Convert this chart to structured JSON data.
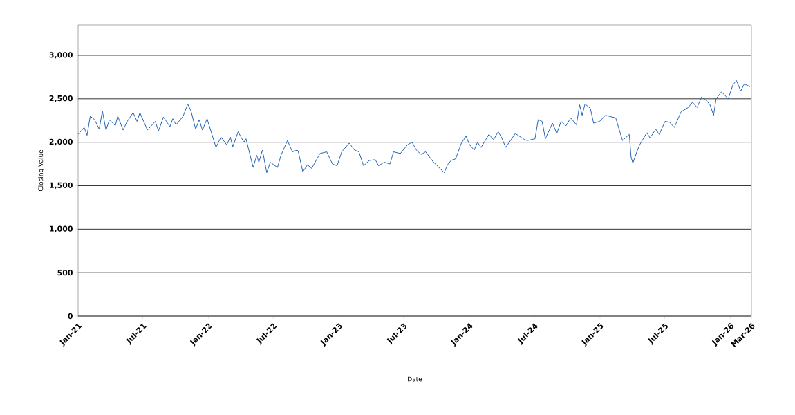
{
  "chart_data": {
    "type": "line",
    "xlabel": "Date",
    "ylabel": "Closing Value",
    "x": [
      "2021-01-01",
      "2021-01-18",
      "2021-01-26",
      "2021-02-04",
      "2021-02-16",
      "2021-03-01",
      "2021-03-10",
      "2021-03-20",
      "2021-03-30",
      "2021-04-15",
      "2021-04-22",
      "2021-05-07",
      "2021-05-17",
      "2021-06-04",
      "2021-06-15",
      "2021-06-23",
      "2021-07-14",
      "2021-08-05",
      "2021-08-14",
      "2021-08-28",
      "2021-09-15",
      "2021-09-23",
      "2021-10-02",
      "2021-10-22",
      "2021-11-04",
      "2021-11-13",
      "2021-11-26",
      "2021-12-06",
      "2021-12-15",
      "2021-12-28",
      "2022-01-22",
      "2022-02-05",
      "2022-02-21",
      "2022-03-03",
      "2022-03-10",
      "2022-03-25",
      "2022-04-10",
      "2022-04-16",
      "2022-05-06",
      "2022-05-16",
      "2022-05-22",
      "2022-06-01",
      "2022-06-13",
      "2022-06-23",
      "2022-07-13",
      "2022-07-23",
      "2022-08-10",
      "2022-08-24",
      "2022-09-06",
      "2022-09-09",
      "2022-09-22",
      "2022-10-05",
      "2022-10-17",
      "2022-11-09",
      "2022-11-28",
      "2022-12-14",
      "2022-12-27",
      "2023-01-09",
      "2023-01-30",
      "2023-02-14",
      "2023-02-26",
      "2023-03-11",
      "2023-03-27",
      "2023-04-13",
      "2023-04-22",
      "2023-05-08",
      "2023-05-24",
      "2023-06-03",
      "2023-06-22",
      "2023-07-12",
      "2023-07-25",
      "2023-08-06",
      "2023-08-19",
      "2023-09-01",
      "2023-09-21",
      "2023-10-03",
      "2023-10-23",
      "2023-11-01",
      "2023-11-11",
      "2023-11-24",
      "2023-12-10",
      "2023-12-23",
      "2024-01-02",
      "2024-01-15",
      "2024-01-24",
      "2024-02-03",
      "2024-02-25",
      "2024-03-09",
      "2024-03-22",
      "2024-04-01",
      "2024-04-12",
      "2024-04-27",
      "2024-05-09",
      "2024-06-04",
      "2024-06-11",
      "2024-07-03",
      "2024-07-12",
      "2024-07-23",
      "2024-08-01",
      "2024-08-21",
      "2024-09-02",
      "2024-09-14",
      "2024-09-28",
      "2024-10-11",
      "2024-10-27",
      "2024-11-05",
      "2024-11-12",
      "2024-11-20",
      "2024-12-05",
      "2024-12-14",
      "2024-12-31",
      "2025-01-16",
      "2025-02-14",
      "2025-03-05",
      "2025-03-24",
      "2025-03-29",
      "2025-04-03",
      "2025-04-15",
      "2025-04-22",
      "2025-05-12",
      "2025-05-21",
      "2025-06-06",
      "2025-06-16",
      "2025-07-02",
      "2025-07-15",
      "2025-07-28",
      "2025-08-16",
      "2025-09-05",
      "2025-09-17",
      "2025-09-30",
      "2025-10-12",
      "2025-10-26",
      "2025-11-05",
      "2025-11-15",
      "2025-11-22",
      "2025-12-07",
      "2025-12-26",
      "2026-01-08",
      "2026-01-18",
      "2026-01-30",
      "2026-02-09",
      "2026-02-25"
    ],
    "series": [
      {
        "color": "#2463b4",
        "values": [
          2090,
          2170,
          2080,
          2300,
          2260,
          2150,
          2360,
          2140,
          2260,
          2190,
          2300,
          2140,
          2230,
          2340,
          2240,
          2340,
          2140,
          2240,
          2130,
          2290,
          2180,
          2270,
          2200,
          2300,
          2440,
          2360,
          2150,
          2260,
          2140,
          2270,
          1940,
          2060,
          1970,
          2060,
          1950,
          2120,
          2000,
          2040,
          1710,
          1850,
          1770,
          1910,
          1650,
          1770,
          1710,
          1850,
          2020,
          1890,
          1910,
          1900,
          1660,
          1740,
          1700,
          1870,
          1890,
          1750,
          1730,
          1890,
          1990,
          1910,
          1890,
          1730,
          1790,
          1800,
          1730,
          1770,
          1750,
          1890,
          1870,
          1970,
          2000,
          1910,
          1860,
          1890,
          1780,
          1730,
          1650,
          1740,
          1790,
          1810,
          1990,
          2070,
          1970,
          1910,
          2000,
          1940,
          2090,
          2030,
          2120,
          2050,
          1940,
          2030,
          2100,
          2030,
          2020,
          2040,
          2260,
          2240,
          2040,
          2220,
          2100,
          2240,
          2190,
          2280,
          2200,
          2430,
          2310,
          2440,
          2390,
          2220,
          2240,
          2310,
          2280,
          2020,
          2090,
          1830,
          1760,
          1900,
          1970,
          2110,
          2050,
          2150,
          2090,
          2240,
          2230,
          2170,
          2350,
          2400,
          2460,
          2400,
          2520,
          2480,
          2430,
          2310,
          2500,
          2580,
          2500,
          2660,
          2710,
          2590,
          2670,
          2640
        ]
      }
    ],
    "xlim": [
      "2021-01-01",
      "2026-03-01"
    ],
    "xticks": [
      {
        "value": "2021-01-01",
        "label": "Jan-21"
      },
      {
        "value": "2021-07-01",
        "label": "Jul-21"
      },
      {
        "value": "2022-01-01",
        "label": "Jan-22"
      },
      {
        "value": "2022-07-01",
        "label": "Jul-22"
      },
      {
        "value": "2023-01-01",
        "label": "Jan-23"
      },
      {
        "value": "2023-07-01",
        "label": "Jul-23"
      },
      {
        "value": "2024-01-01",
        "label": "Jan-24"
      },
      {
        "value": "2024-07-01",
        "label": "Jul-24"
      },
      {
        "value": "2025-01-01",
        "label": "Jan-25"
      },
      {
        "value": "2025-07-01",
        "label": "Jul-25"
      },
      {
        "value": "2026-01-01",
        "label": "Jan-26"
      },
      {
        "value": "2026-03-01",
        "label": "Mar-26"
      }
    ],
    "ylim": [
      0,
      3350
    ],
    "yticks": [
      0,
      500,
      {
        "value": 1000,
        "label": "1,000"
      },
      {
        "value": 1500,
        "label": "1,500"
      },
      {
        "value": 2000,
        "label": "2,000"
      },
      {
        "value": 2500,
        "label": "2,500"
      },
      {
        "value": 3000,
        "label": "3,000"
      }
    ],
    "grid": "y",
    "marker": "none",
    "line_style": "solid"
  }
}
